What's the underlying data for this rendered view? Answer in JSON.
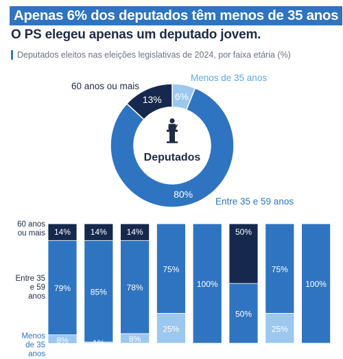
{
  "header": {
    "title": "Apenas 6% dos deputados têm menos de 35 anos",
    "title_end": ".",
    "subtitle": "O PS elegeu apenas um deputado jovem.",
    "description": "Deputados eleitos nas eleições legislativas de 2024, por faixa etária (%)"
  },
  "colors": {
    "young": "#9cc7ee",
    "middle": "#2f74c0",
    "old": "#16284d",
    "accent": "#2f74c0"
  },
  "donut": {
    "center_label": "Deputados",
    "center_icon": "speaker-at-podium-icon",
    "labels": {
      "young": "Menos de 35 anos",
      "middle": "Entre 35 e 59 anos",
      "old": "60 anos ou mais"
    }
  },
  "row_labels": {
    "old": "60 anos ou mais",
    "middle": "Entre 35 e 59 anos",
    "young": "Menos de 35 anos"
  },
  "chart_data": [
    {
      "type": "pie",
      "title": "Deputados",
      "categories": [
        "Menos de 35 anos",
        "Entre 35 e 59 anos",
        "60 anos ou mais"
      ],
      "values": [
        6,
        80,
        13
      ],
      "value_labels": [
        "6%",
        "80%",
        "13%"
      ]
    },
    {
      "type": "bar",
      "stacked": true,
      "categories": [
        "",
        "",
        "",
        "",
        "",
        "",
        "",
        ""
      ],
      "series": [
        {
          "name": "60 anos ou mais",
          "values": [
            14,
            14,
            14,
            0,
            0,
            50,
            0,
            0
          ]
        },
        {
          "name": "Entre 35 e 59 anos",
          "values": [
            79,
            85,
            78,
            75,
            100,
            50,
            75,
            100
          ]
        },
        {
          "name": "Menos de 35 anos",
          "values": [
            8,
            1,
            8,
            25,
            0,
            0,
            25,
            0
          ]
        }
      ],
      "value_labels": {
        "old": [
          "14%",
          "14%",
          "14%",
          "",
          "",
          "50%",
          "",
          ""
        ],
        "middle": [
          "79%",
          "85%",
          "78%",
          "75%",
          "100%",
          "50%",
          "75%",
          "100%"
        ],
        "young": [
          "8%",
          "1%",
          "8%",
          "25%",
          "",
          "",
          "25%",
          ""
        ]
      }
    }
  ]
}
